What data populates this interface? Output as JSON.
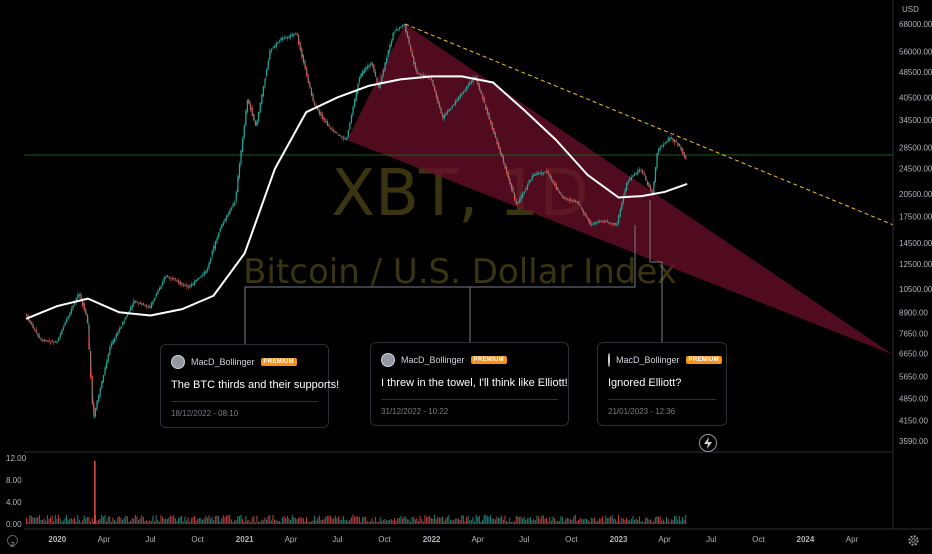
{
  "watermark": {
    "symbol": "XBT, 1D",
    "description": "Bitcoin / U.S. Dollar Index"
  },
  "currency_label": "USD",
  "colors": {
    "up": "#26a69a",
    "down": "#ef5350",
    "wedge_fill": "#6b0f2a",
    "ma_line": "#ffffff",
    "trendline": "#f2c12e",
    "horizontal_line": "#1b5e20",
    "premium_badge": "#f7931a"
  },
  "ideas": [
    {
      "user": "MacD_Bollinger",
      "badge": "PREMIUM",
      "title": "The BTC thirds and their supports!",
      "time": "18/12/2022 - 08:10"
    },
    {
      "user": "MacD_Bollinger",
      "badge": "PREMIUM",
      "title": "I threw in the towel, I'll think like Elliott!",
      "time": "31/12/2022 - 10:22"
    },
    {
      "user": "MacD_Bollinger",
      "badge": "PREMIUM",
      "title": "Ignored Elliott?",
      "time": "21/01/2023 - 12:36"
    }
  ],
  "icons": {
    "lightning": "lightning-icon",
    "settings": "gear-icon",
    "log_scale": "z-icon"
  },
  "chart_data": {
    "type": "line",
    "title": "",
    "price_scale": "log",
    "ylim": [
      3590,
      68000
    ],
    "y_ticks": [
      "68000.00",
      "56000.00",
      "48500.00",
      "40500.00",
      "34500.00",
      "28500.00",
      "24500.00",
      "20500.00",
      "17500.00",
      "14500.00",
      "12500.00",
      "10500.00",
      "8900.00",
      "7650.00",
      "6650.00",
      "5650.00",
      "4850.00",
      "4150.00",
      "3590.00"
    ],
    "x_ticks": [
      "2020",
      "Apr",
      "Jul",
      "Oct",
      "2021",
      "Apr",
      "Jul",
      "Oct",
      "2022",
      "Apr",
      "Jul",
      "Oct",
      "2023",
      "Apr",
      "Jul",
      "Oct",
      "2024",
      "Apr"
    ],
    "x_range": [
      "2019-10-28",
      "2024-06-20"
    ],
    "price": {
      "name": "",
      "x": [
        "2019-11-01",
        "2019-12-01",
        "2020-01-01",
        "2020-02-14",
        "2020-03-01",
        "2020-03-13",
        "2020-04-15",
        "2020-06-01",
        "2020-07-01",
        "2020-08-01",
        "2020-09-15",
        "2020-10-20",
        "2020-11-15",
        "2020-12-15",
        "2021-01-08",
        "2021-01-25",
        "2021-02-21",
        "2021-03-13",
        "2021-04-14",
        "2021-05-19",
        "2021-06-22",
        "2021-07-20",
        "2021-08-15",
        "2021-09-07",
        "2021-09-21",
        "2021-10-20",
        "2021-11-10",
        "2021-12-04",
        "2022-01-01",
        "2022-01-24",
        "2022-03-29",
        "2022-05-12",
        "2022-06-18",
        "2022-07-20",
        "2022-08-15",
        "2022-09-15",
        "2022-10-15",
        "2022-11-09",
        "2022-12-01",
        "2022-12-30",
        "2023-01-20",
        "2023-02-15",
        "2023-03-10",
        "2023-03-20",
        "2023-04-14",
        "2023-05-01",
        "2023-05-12"
      ],
      "y": [
        8800,
        7300,
        7200,
        10200,
        8600,
        4200,
        7000,
        9600,
        9200,
        11500,
        10600,
        11900,
        16000,
        19500,
        40000,
        33000,
        56000,
        61000,
        63500,
        38000,
        32000,
        30000,
        47000,
        52000,
        43000,
        64000,
        68000,
        48000,
        46500,
        35000,
        47000,
        29000,
        19000,
        23500,
        24000,
        20000,
        19300,
        16500,
        17000,
        16500,
        22500,
        24500,
        20500,
        28000,
        30500,
        29000,
        26500
      ]
    },
    "moving_average": {
      "name": "",
      "x": [
        "2019-11-01",
        "2020-01-01",
        "2020-03-01",
        "2020-05-01",
        "2020-07-01",
        "2020-09-01",
        "2020-11-01",
        "2021-01-01",
        "2021-03-01",
        "2021-05-01",
        "2021-07-01",
        "2021-09-01",
        "2021-11-01",
        "2022-01-01",
        "2022-03-01",
        "2022-05-01",
        "2022-07-01",
        "2022-09-01",
        "2022-11-01",
        "2023-01-01",
        "2023-02-15",
        "2023-04-01",
        "2023-05-15"
      ],
      "y": [
        8500,
        9300,
        9800,
        8900,
        8700,
        9100,
        10000,
        13500,
        24500,
        36500,
        40500,
        44000,
        46000,
        47000,
        47000,
        45000,
        37000,
        30000,
        23500,
        20000,
        20200,
        20800,
        22000
      ]
    },
    "horizontal_level": 27000,
    "downtrend_line": {
      "x": [
        "2021-11-10",
        "2024-06-20"
      ],
      "y": [
        68000,
        16500
      ]
    },
    "wedge": {
      "upper": {
        "x": [
          "2021-11-10",
          "2024-06-20"
        ],
        "y": [
          68000,
          6600
        ]
      },
      "lower": {
        "x": [
          "2021-07-20",
          "2022-12-30"
        ],
        "y": [
          30000,
          15500
        ]
      }
    },
    "volume": {
      "ylim": [
        0,
        12
      ],
      "y_ticks": [
        "12.00",
        "8.00",
        "4.00",
        "0.00"
      ],
      "x": [
        "2020-03-13"
      ],
      "values": [
        11.5
      ],
      "typical_level": 1.0
    }
  }
}
